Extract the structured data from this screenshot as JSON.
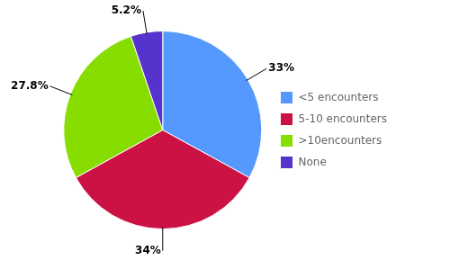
{
  "chart_data": {
    "type": "pie",
    "categories": [
      "<5 encounters",
      "5-10 encounters",
      ">10encounters",
      "None"
    ],
    "values": [
      33.0,
      34.0,
      27.8,
      5.2
    ],
    "value_labels": [
      "33%",
      "34%",
      "27.8%",
      "5.2%"
    ],
    "colors": [
      "#5599FF",
      "#CC1144",
      "#88DD00",
      "#5533CC"
    ],
    "data_labels": true,
    "legend": "right"
  }
}
